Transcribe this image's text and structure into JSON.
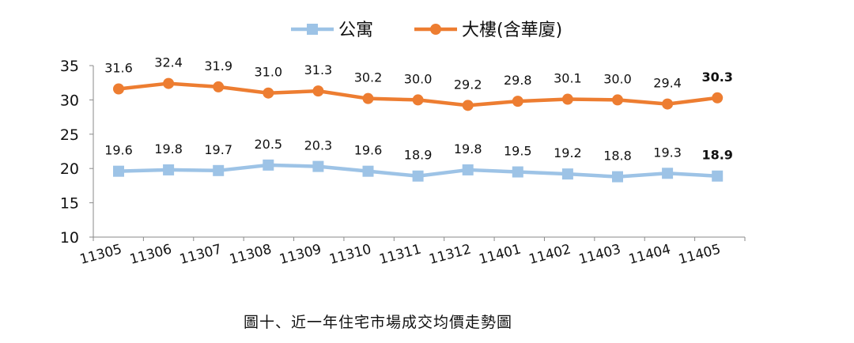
{
  "chart_data": {
    "type": "line",
    "title": "",
    "categories": [
      "11305",
      "11306",
      "11307",
      "11308",
      "11309",
      "11310",
      "11311",
      "11312",
      "11401",
      "11402",
      "11403",
      "11404",
      "11405"
    ],
    "series": [
      {
        "name": "公寓",
        "color": "#9dc3e6",
        "marker": "square",
        "values": [
          19.6,
          19.8,
          19.7,
          20.5,
          20.3,
          19.6,
          18.9,
          19.8,
          19.5,
          19.2,
          18.8,
          19.3,
          18.9
        ],
        "labels": [
          "19.6",
          "19.8",
          "19.7",
          "20.5",
          "20.3",
          "19.6",
          "18.9",
          "19.8",
          "19.5",
          "19.2",
          "18.8",
          "19.3",
          "18.9"
        ]
      },
      {
        "name": "大樓(含華廈)",
        "color": "#ed7d31",
        "marker": "circle",
        "values": [
          31.6,
          32.4,
          31.9,
          31.0,
          31.3,
          30.2,
          30.0,
          29.2,
          29.8,
          30.1,
          30.0,
          29.4,
          30.3
        ],
        "labels": [
          "31.6",
          "32.4",
          "31.9",
          "31.0",
          "31.3",
          "30.2",
          "30.0",
          "29.2",
          "29.8",
          "30.1",
          "30.0",
          "29.4",
          "30.3"
        ]
      }
    ],
    "yticks": [
      "10",
      "15",
      "20",
      "25",
      "30",
      "35"
    ],
    "ylim": [
      10,
      35
    ],
    "xlabel": "",
    "ylabel": "",
    "grid": false,
    "legend": "top"
  },
  "caption": "圖十、近一年住宅市場成交均價走勢圖"
}
